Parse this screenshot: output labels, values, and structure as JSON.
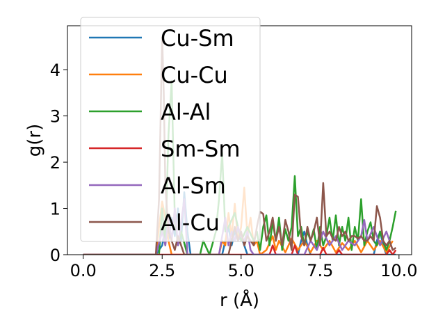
{
  "chart_data": {
    "type": "line",
    "title": "",
    "xlabel": "r (Å)",
    "ylabel": "g(r)",
    "xlim": [
      -0.5,
      10.4
    ],
    "ylim": [
      0,
      4.95
    ],
    "xticks": [
      0.0,
      2.5,
      5.0,
      7.5,
      10.0
    ],
    "xtick_labels": [
      "0.0",
      "2.5",
      "5.0",
      "7.5",
      "10.0"
    ],
    "yticks": [
      0,
      1,
      2,
      3,
      4
    ],
    "ytick_labels": [
      "0",
      "1",
      "2",
      "3",
      "4"
    ],
    "grid": false,
    "legend_position": "upper-left",
    "series": [
      {
        "name": "Cu-Sm",
        "color": "#1f77b4",
        "x": [
          0,
          2.3,
          2.5,
          2.6,
          2.7,
          2.8,
          2.9,
          3.0,
          3.1,
          3.2,
          3.3,
          3.4,
          3.5,
          4.4,
          4.5,
          4.6,
          4.7,
          4.8,
          4.9,
          5.0,
          5.1,
          5.2,
          6.8,
          6.9,
          7.0,
          7.1,
          7.2,
          9.2,
          9.3,
          9.4,
          9.5,
          9.6,
          9.9
        ],
        "y": [
          0,
          0,
          0.2,
          0.6,
          0.3,
          0.8,
          0.4,
          1.0,
          0.3,
          1.35,
          0.5,
          0,
          0,
          0,
          0.3,
          0.6,
          0.2,
          0.5,
          0.3,
          0.4,
          0.2,
          0,
          0,
          0.3,
          0.5,
          0.2,
          0,
          0,
          0.3,
          0.5,
          0.2,
          0,
          0
        ]
      },
      {
        "name": "Cu-Cu",
        "color": "#ff7f0e",
        "x": [
          0,
          2.3,
          2.4,
          2.5,
          2.6,
          2.7,
          2.8,
          4.3,
          4.4,
          4.5,
          4.6,
          4.7,
          4.8,
          4.9,
          5.0,
          5.1,
          5.2,
          5.3,
          5.4,
          5.5,
          5.6,
          5.8,
          6.0,
          6.1,
          6.2,
          6.4,
          6.6,
          6.8,
          7.0,
          7.2,
          7.4,
          7.6,
          7.8,
          8.0,
          8.2,
          8.4,
          8.6,
          8.8,
          9.0,
          9.2,
          9.4,
          9.6,
          9.8
        ],
        "y": [
          0,
          0,
          0.6,
          1.15,
          0.8,
          0.3,
          0,
          0,
          0.3,
          0.2,
          0.9,
          0.4,
          1.1,
          0.3,
          0.6,
          1.45,
          0.4,
          0.8,
          0.2,
          0.3,
          0,
          0.1,
          0.4,
          0.1,
          0.3,
          0.05,
          0.35,
          0.1,
          0.3,
          0.05,
          0.3,
          0.1,
          0.3,
          0.05,
          0.25,
          0.1,
          0.3,
          0.05,
          0.3,
          0.1,
          0.3,
          0.05,
          0.3
        ]
      },
      {
        "name": "Al-Al",
        "color": "#2ca02c",
        "x": [
          0,
          2.2,
          2.4,
          2.5,
          2.6,
          2.7,
          2.8,
          2.9,
          3.0,
          3.1,
          3.3,
          3.6,
          3.7,
          3.8,
          4.0,
          4.2,
          4.3,
          4.4,
          4.5,
          4.6,
          4.8,
          5.0,
          5.2,
          5.4,
          5.5,
          5.6,
          5.7,
          5.8,
          5.9,
          6.0,
          6.1,
          6.2,
          6.3,
          6.4,
          6.5,
          6.6,
          6.7,
          6.8,
          6.9,
          7.0,
          7.1,
          7.2,
          7.3,
          7.4,
          7.5,
          7.6,
          7.7,
          7.8,
          7.9,
          8.0,
          8.1,
          8.2,
          8.3,
          8.4,
          8.5,
          8.6,
          8.7,
          8.8,
          8.9,
          9.0,
          9.1,
          9.2,
          9.3,
          9.4,
          9.5,
          9.6,
          9.7,
          9.8,
          9.9
        ],
        "y": [
          0,
          0,
          0,
          1.0,
          0.2,
          2.6,
          3.75,
          0.8,
          0.2,
          0.5,
          0,
          0,
          0,
          0.3,
          0,
          0.5,
          1.2,
          2.2,
          0.5,
          0.6,
          0.9,
          0.3,
          0.6,
          0.3,
          0.5,
          0.1,
          0.6,
          0.85,
          0.2,
          0.7,
          0.3,
          0.8,
          0.1,
          0.55,
          0.3,
          0.6,
          1.7,
          0.4,
          0.6,
          0.2,
          0.5,
          0.3,
          0.55,
          0.1,
          0.6,
          0.2,
          0.4,
          0.8,
          0.3,
          0.85,
          0.2,
          0.6,
          0.3,
          0.8,
          0.1,
          0.6,
          0.3,
          1.2,
          0.2,
          0.5,
          0.7,
          0.3,
          0.2,
          0.5,
          0.3,
          0.1,
          0.3,
          0.6,
          0.95
        ]
      },
      {
        "name": "Sm-Sm",
        "color": "#d62728",
        "x": [
          0,
          5.9,
          6.0,
          6.1,
          6.2,
          6.6,
          6.7,
          6.8,
          7.5,
          7.6,
          7.7,
          8.0,
          8.1,
          8.2,
          9.6,
          9.7,
          9.8,
          9.9
        ],
        "y": [
          0,
          0,
          0.2,
          0,
          0,
          0,
          0.2,
          0,
          0,
          0.15,
          0,
          0,
          0.1,
          0,
          0,
          0.1,
          0,
          0.1
        ]
      },
      {
        "name": "Al-Sm",
        "color": "#9467bd",
        "x": [
          0,
          2.3,
          2.5,
          2.6,
          2.7,
          2.8,
          2.9,
          3.0,
          3.1,
          3.2,
          3.3,
          4.3,
          4.4,
          4.5,
          4.6,
          4.7,
          4.8,
          4.9,
          5.0,
          5.1,
          5.2,
          5.3,
          5.4,
          7.0,
          7.2,
          7.4,
          7.6,
          7.8,
          8.0,
          8.2,
          8.4,
          8.6,
          8.8,
          8.9,
          9.0,
          9.2,
          9.4,
          9.6,
          9.8
        ],
        "y": [
          0,
          0,
          0.5,
          0.2,
          0.8,
          0.3,
          1.0,
          0.2,
          0.7,
          1.2,
          0,
          0,
          0.4,
          0.8,
          0.2,
          0.5,
          0.3,
          0.6,
          0.4,
          0.3,
          0.5,
          0.1,
          0,
          0,
          0.3,
          0.1,
          0.5,
          0.2,
          0.4,
          0.1,
          0.3,
          0.2,
          0.4,
          0.75,
          0.3,
          0.6,
          0.2,
          0.5,
          0.1
        ]
      },
      {
        "name": "Al-Cu",
        "color": "#8c564b",
        "x": [
          0,
          2.3,
          2.4,
          2.5,
          2.55,
          2.6,
          2.7,
          2.8,
          2.9,
          3.0,
          3.1,
          3.2,
          4.6,
          4.7,
          4.8,
          4.9,
          5.0,
          5.1,
          5.2,
          5.3,
          5.4,
          5.5,
          5.6,
          5.7,
          5.8,
          5.9,
          6.0,
          6.1,
          6.2,
          6.3,
          6.4,
          6.5,
          6.6,
          6.7,
          6.8,
          6.9,
          7.0,
          7.1,
          7.2,
          7.3,
          7.4,
          7.5,
          7.6,
          7.7,
          7.8,
          7.9,
          8.0,
          8.1,
          8.2,
          8.3,
          8.4,
          8.5,
          8.6,
          8.7,
          8.8,
          8.9,
          9.0,
          9.1,
          9.2,
          9.3,
          9.4,
          9.5,
          9.6,
          9.7,
          9.8,
          9.9
        ],
        "y": [
          0,
          0,
          1.2,
          4.7,
          3.5,
          1.5,
          0.5,
          0.3,
          0.1,
          0.4,
          0.2,
          0,
          0,
          0.3,
          0.6,
          0.3,
          0.5,
          0.2,
          0.4,
          0.3,
          0.2,
          0.6,
          0.93,
          0.88,
          0.3,
          0.5,
          0.8,
          0.3,
          0.6,
          0.2,
          0.75,
          0.5,
          0.1,
          1.3,
          1.25,
          0.4,
          0.2,
          0.6,
          0.3,
          0.5,
          0.8,
          0.2,
          1.55,
          0.4,
          0.5,
          0.35,
          0.3,
          0.6,
          0.4,
          0.5,
          0.3,
          0.4,
          0.4,
          0.35,
          0.4,
          0.3,
          0.3,
          0.4,
          0.3,
          1.05,
          0.8,
          0.3,
          0.2,
          0.3,
          0.1,
          0.15
        ]
      }
    ]
  }
}
